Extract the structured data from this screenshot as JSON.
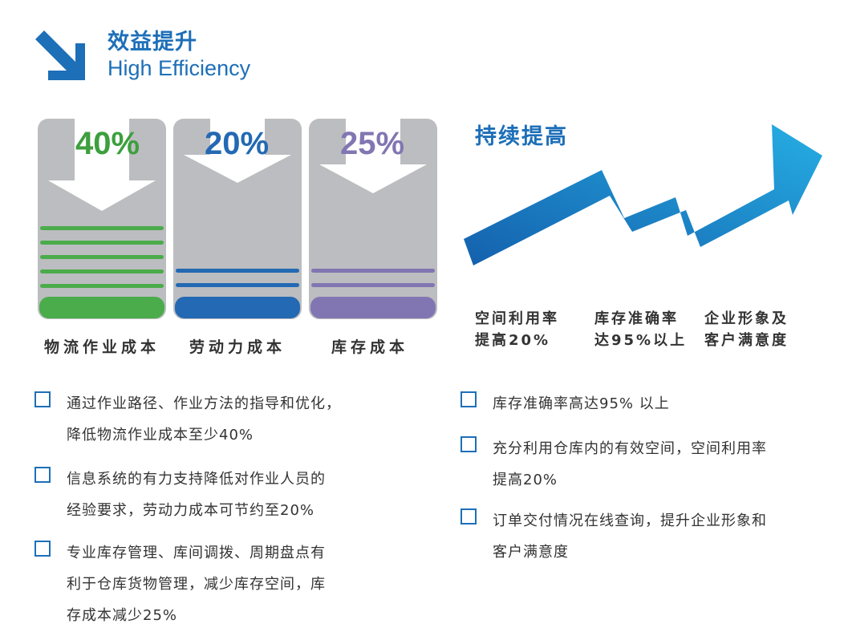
{
  "header": {
    "title_cn": "效益提升",
    "title_en": "High Efficiency"
  },
  "columns": [
    {
      "percent": "40%",
      "label": "物流作业成本",
      "color": "#4aac4a",
      "lines": 5
    },
    {
      "percent": "20%",
      "label": "劳动力成本",
      "color": "#2369b3",
      "lines": 2
    },
    {
      "percent": "25%",
      "label": "库存成本",
      "color": "#8276b2",
      "lines": 2
    }
  ],
  "growth": {
    "title": "持续提高",
    "labels": [
      {
        "line1": "空间利用率",
        "line2": "提高20%"
      },
      {
        "line1": "库存准确率",
        "line2": "达95%以上"
      },
      {
        "line1": "企业形象及",
        "line2": "客户满意度"
      }
    ]
  },
  "left_bullets": [
    [
      "通过作业路径、作业方法的指导和优化，",
      "降低物流作业成本至少40%"
    ],
    [
      "信息系统的有力支持降低对作业人员的",
      "经验要求，劳动力成本可节约至20%"
    ],
    [
      "专业库存管理、库间调拨、周期盘点有",
      "利于仓库货物管理，减少库存空间，库",
      "存成本减少25%"
    ]
  ],
  "right_bullets": [
    [
      "库存准确率高达95% 以上"
    ],
    [
      "充分利用仓库内的有效空间，空间利用率",
      "提高20%"
    ],
    [
      "订单交付情况在线查询，提升企业形象和",
      "客户满意度"
    ]
  ]
}
